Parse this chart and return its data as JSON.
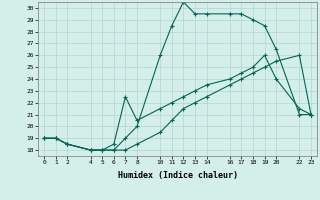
{
  "xlabel": "Humidex (Indice chaleur)",
  "background_color": "#d4eeea",
  "grid_color": "#aacccc",
  "line_color": "#006655",
  "xlim": [
    -0.5,
    23.5
  ],
  "ylim": [
    17.5,
    30.5
  ],
  "x_tick_positions": [
    0,
    1,
    2,
    4,
    5,
    6,
    7,
    8,
    10,
    11,
    12,
    13,
    14,
    16,
    17,
    18,
    19,
    20,
    22,
    23
  ],
  "x_tick_labels": [
    "0",
    "1",
    "2",
    "4",
    "5",
    "6",
    "7",
    "8",
    "10",
    "11",
    "12",
    "13",
    "14",
    "16",
    "17",
    "18",
    "19",
    "20",
    "22",
    "23"
  ],
  "y_tick_positions": [
    18,
    19,
    20,
    21,
    22,
    23,
    24,
    25,
    26,
    27,
    28,
    29,
    30
  ],
  "series": [
    {
      "x": [
        0,
        1,
        2,
        4,
        5,
        6,
        7,
        8,
        10,
        11,
        12,
        13,
        14,
        16,
        17,
        18,
        19,
        20,
        22,
        23
      ],
      "y": [
        19.0,
        19.0,
        18.5,
        18.0,
        18.0,
        18.0,
        18.0,
        18.5,
        19.5,
        20.5,
        21.5,
        22.0,
        22.5,
        23.5,
        24.0,
        24.5,
        25.0,
        25.5,
        26.0,
        21.0
      ]
    },
    {
      "x": [
        0,
        1,
        2,
        4,
        5,
        6,
        7,
        8,
        10,
        11,
        12,
        13,
        14,
        16,
        17,
        18,
        19,
        20,
        22,
        23
      ],
      "y": [
        19.0,
        19.0,
        18.5,
        18.0,
        18.0,
        18.5,
        22.5,
        20.5,
        21.5,
        22.0,
        22.5,
        23.0,
        23.5,
        24.0,
        24.5,
        25.0,
        26.0,
        24.0,
        21.5,
        21.0
      ]
    },
    {
      "x": [
        0,
        1,
        2,
        4,
        5,
        6,
        7,
        8,
        10,
        11,
        12,
        13,
        14,
        16,
        17,
        18,
        19,
        20,
        22,
        23
      ],
      "y": [
        19.0,
        19.0,
        18.5,
        18.0,
        18.0,
        18.0,
        19.0,
        20.0,
        26.0,
        28.5,
        30.5,
        29.5,
        29.5,
        29.5,
        29.5,
        29.0,
        28.5,
        26.5,
        21.0,
        21.0
      ]
    }
  ]
}
